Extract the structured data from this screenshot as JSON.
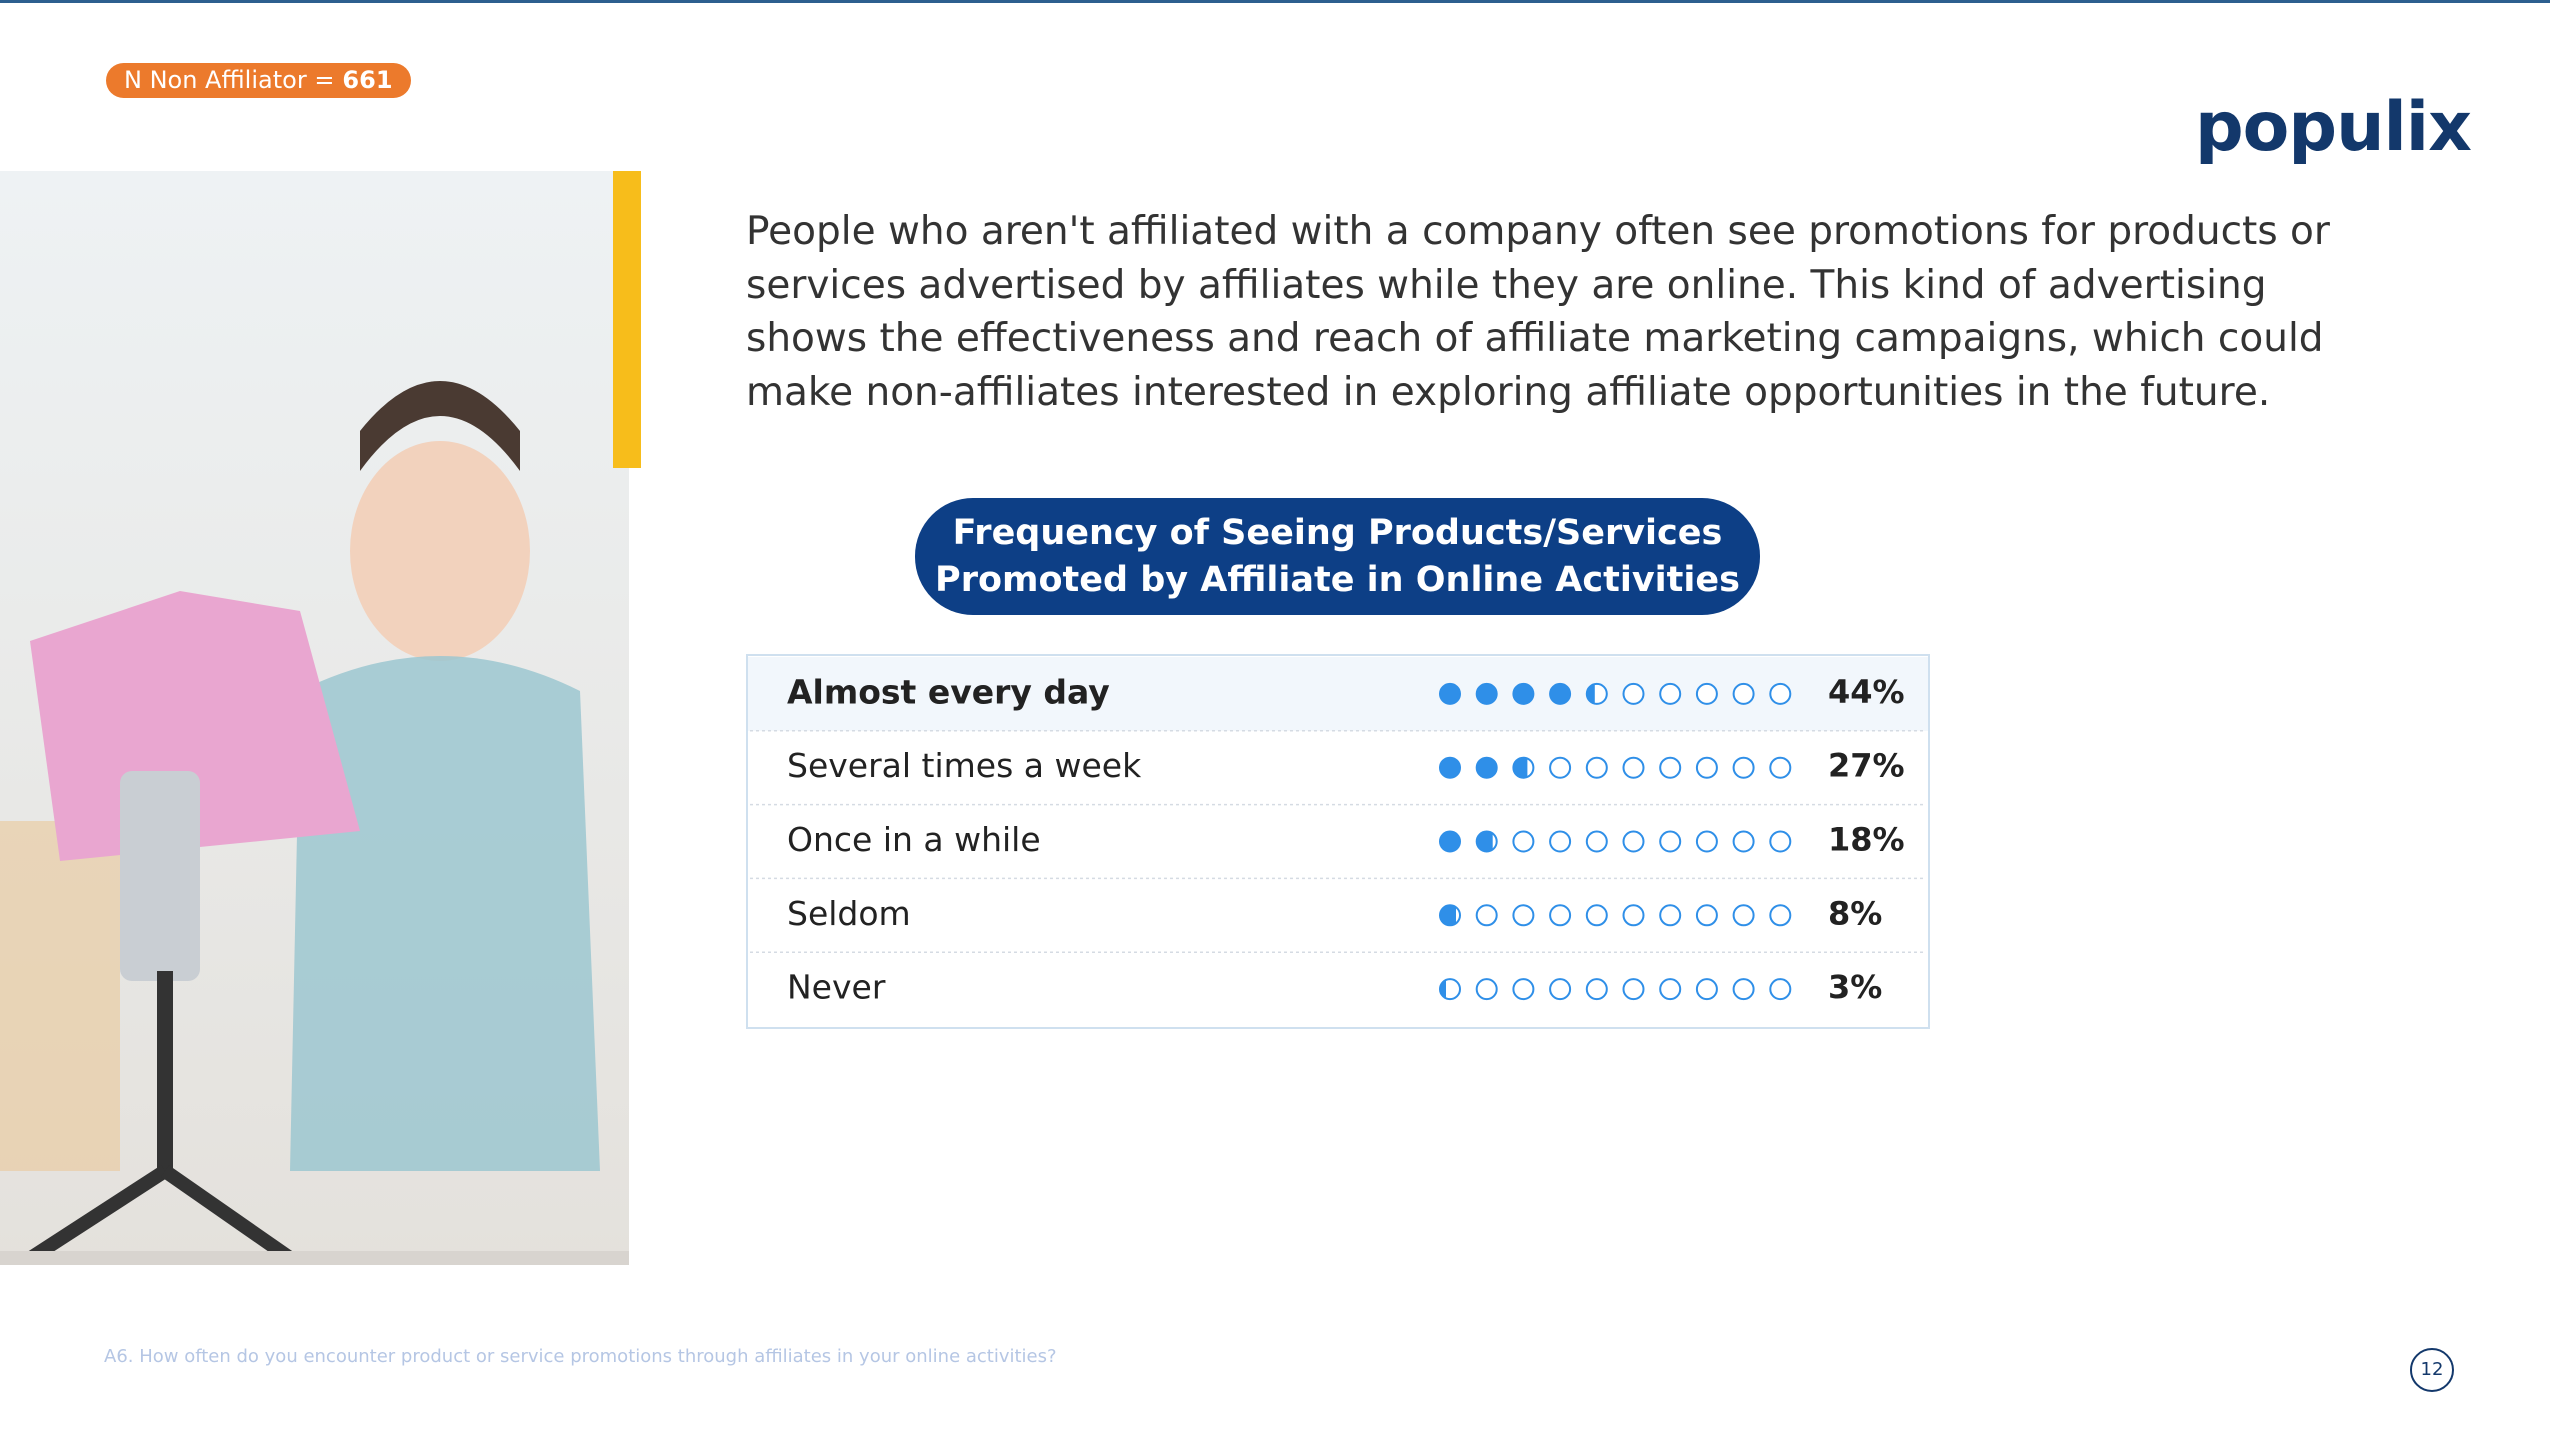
{
  "badge": {
    "label": "N Non Affiliator =",
    "value": 661
  },
  "logo": "populix",
  "paragraph": "People who aren't affiliated with a company often see promotions for products or services advertised by affiliates while they are online. This kind of advertising shows the effectiveness and reach of affiliate marketing campaigns, which could make non-affiliates interested in exploring affiliate opportunities in the future.",
  "chart_data": {
    "type": "dot",
    "title": "Frequency of Seeing Products/Services Promoted by Affiliate in Online Activities",
    "categories": [
      "Almost every day",
      "Several times a week",
      "Once in a while",
      "Seldom",
      "Never"
    ],
    "values": [
      44,
      27,
      18,
      8,
      3
    ],
    "value_labels": [
      "44%",
      "27%",
      "18%",
      "8%",
      "3%"
    ],
    "xlim": [
      0,
      100
    ],
    "color": "#2f8fe8"
  },
  "footnote": "A6. How often do you encounter product or service promotions through affiliates in your online activities?",
  "page_number": 12
}
